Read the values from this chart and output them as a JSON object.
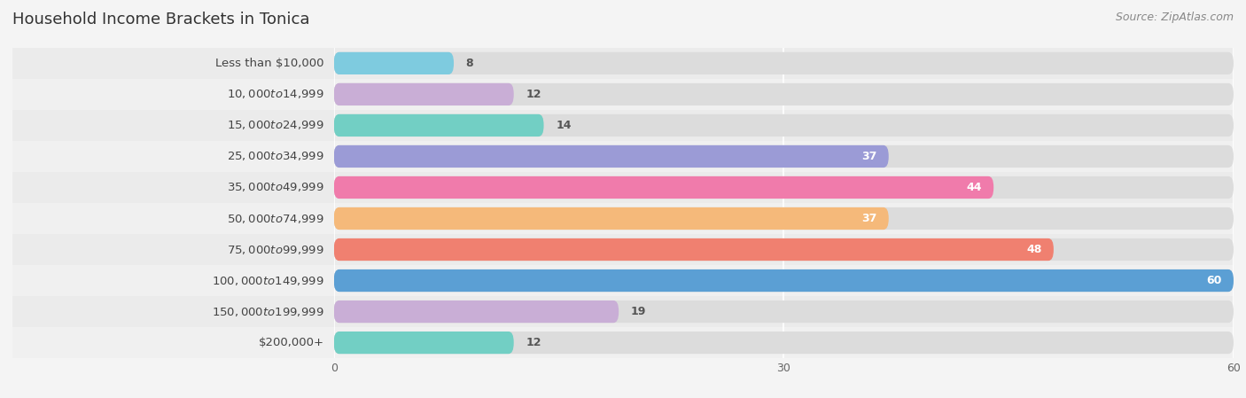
{
  "title": "Household Income Brackets in Tonica",
  "source": "Source: ZipAtlas.com",
  "categories": [
    "Less than $10,000",
    "$10,000 to $14,999",
    "$15,000 to $24,999",
    "$25,000 to $34,999",
    "$35,000 to $49,999",
    "$50,000 to $74,999",
    "$75,000 to $99,999",
    "$100,000 to $149,999",
    "$150,000 to $199,999",
    "$200,000+"
  ],
  "values": [
    8,
    12,
    14,
    37,
    44,
    37,
    48,
    60,
    19,
    12
  ],
  "bar_colors": [
    "#7ecbdf",
    "#c9aed6",
    "#72cfc4",
    "#9b9bd6",
    "#f07bab",
    "#f5b97a",
    "#f08070",
    "#5b9fd4",
    "#c9aed6",
    "#72cfc4"
  ],
  "xlim": [
    0,
    60
  ],
  "xticks": [
    0,
    30,
    60
  ],
  "background_color": "#f4f4f4",
  "row_bg_even": "#ebebeb",
  "row_bg_odd": "#f4f4f4",
  "bar_inner_bg": "#e0e0e0",
  "title_fontsize": 13,
  "label_fontsize": 9.5,
  "value_fontsize": 9,
  "source_fontsize": 9
}
